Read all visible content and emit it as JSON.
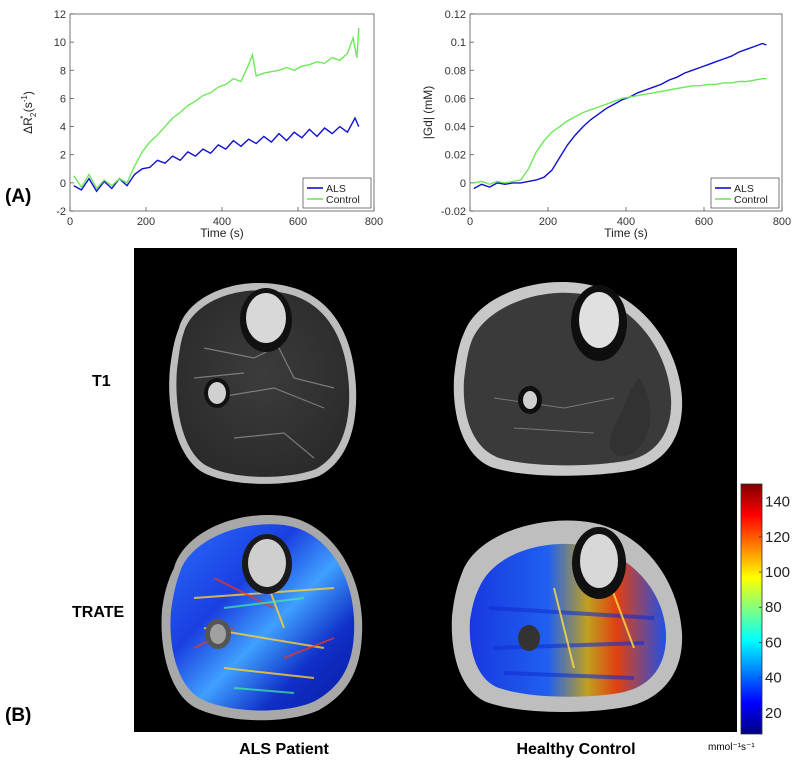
{
  "panel_labels": {
    "a": "(A)",
    "b": "(B)"
  },
  "row_labels": {
    "t1": "T1",
    "trate": "TRATE"
  },
  "column_labels": {
    "als": "ALS Patient",
    "control": "Healthy Control"
  },
  "colorbar": {
    "ticks": [
      "140",
      "120",
      "100",
      "80",
      "60",
      "40",
      "20"
    ],
    "unit": "mmol⁻¹s⁻¹",
    "range": [
      8,
      150
    ],
    "colormap": "jet"
  },
  "colors": {
    "als": "#1010d0",
    "control": "#6ee85a",
    "axis": "#555555"
  },
  "chart_data": [
    {
      "type": "line",
      "title": "",
      "xlabel": "Time (s)",
      "ylabel_html": "ΔR₂* (s⁻¹)",
      "ylabel_parts": {
        "main": "ΔR",
        "sub": "2",
        "sup": "*",
        "unit_open": " (s",
        "unit_sup": "-1",
        "unit_close": ")"
      },
      "xlim": [
        0,
        800
      ],
      "ylim": [
        -2,
        12
      ],
      "xticks": [
        "0",
        "200",
        "400",
        "600",
        "800"
      ],
      "yticks": [
        "-2",
        "0",
        "2",
        "4",
        "6",
        "8",
        "10",
        "12"
      ],
      "legend": [
        "ALS",
        "Control"
      ],
      "legend_position": "bottom-right",
      "series": [
        {
          "name": "ALS",
          "x": [
            10,
            30,
            50,
            70,
            90,
            110,
            130,
            150,
            170,
            190,
            210,
            230,
            250,
            270,
            290,
            310,
            330,
            350,
            370,
            390,
            410,
            430,
            450,
            470,
            490,
            510,
            530,
            550,
            570,
            590,
            610,
            630,
            650,
            670,
            690,
            710,
            730,
            750,
            760
          ],
          "values": [
            -0.2,
            -0.5,
            0.3,
            -0.6,
            0.1,
            -0.4,
            0.3,
            -0.2,
            0.6,
            1.0,
            1.1,
            1.6,
            1.4,
            1.9,
            1.6,
            2.2,
            1.9,
            2.4,
            2.1,
            2.7,
            2.4,
            3.0,
            2.6,
            3.1,
            2.8,
            3.3,
            2.9,
            3.5,
            3.0,
            3.6,
            3.2,
            3.8,
            3.3,
            3.9,
            3.5,
            4.0,
            3.6,
            4.6,
            4.0
          ]
        },
        {
          "name": "Control",
          "x": [
            10,
            30,
            50,
            70,
            90,
            110,
            130,
            150,
            170,
            190,
            210,
            230,
            250,
            270,
            290,
            310,
            330,
            350,
            370,
            390,
            410,
            430,
            450,
            470,
            480,
            490,
            510,
            530,
            550,
            570,
            590,
            610,
            630,
            650,
            670,
            690,
            710,
            730,
            745,
            755,
            760
          ],
          "values": [
            0.5,
            -0.3,
            0.6,
            -0.4,
            0.2,
            -0.2,
            0.3,
            0.0,
            1.2,
            2.2,
            2.9,
            3.4,
            4.0,
            4.6,
            5.0,
            5.5,
            5.8,
            6.2,
            6.4,
            6.8,
            7.0,
            7.4,
            7.2,
            8.4,
            9.1,
            7.6,
            7.8,
            7.9,
            8.0,
            8.2,
            8.0,
            8.3,
            8.4,
            8.6,
            8.5,
            8.9,
            8.7,
            9.2,
            10.3,
            8.9,
            11.0
          ]
        }
      ]
    },
    {
      "type": "line",
      "title": "",
      "xlabel": "Time (s)",
      "ylabel": "|Gd| (mM)",
      "xlim": [
        0,
        800
      ],
      "ylim": [
        -0.02,
        0.12
      ],
      "xticks": [
        "0",
        "200",
        "400",
        "600",
        "800"
      ],
      "yticks": [
        "-0.02",
        "0",
        "0.02",
        "0.04",
        "0.06",
        "0.08",
        "0.1",
        "0.12"
      ],
      "legend": [
        "ALS",
        "Control"
      ],
      "legend_position": "bottom-right",
      "series": [
        {
          "name": "ALS",
          "x": [
            10,
            30,
            50,
            70,
            90,
            110,
            130,
            150,
            170,
            190,
            210,
            230,
            250,
            270,
            290,
            310,
            330,
            350,
            370,
            390,
            410,
            430,
            450,
            470,
            490,
            510,
            530,
            550,
            570,
            590,
            610,
            630,
            650,
            670,
            690,
            710,
            730,
            750,
            760
          ],
          "values": [
            -0.004,
            -0.001,
            -0.003,
            0.0,
            -0.001,
            0.0,
            0.0,
            0.001,
            0.002,
            0.004,
            0.009,
            0.018,
            0.027,
            0.034,
            0.04,
            0.045,
            0.049,
            0.053,
            0.056,
            0.059,
            0.061,
            0.064,
            0.066,
            0.068,
            0.07,
            0.073,
            0.075,
            0.078,
            0.08,
            0.082,
            0.084,
            0.086,
            0.088,
            0.09,
            0.093,
            0.095,
            0.097,
            0.099,
            0.098
          ]
        },
        {
          "name": "Control",
          "x": [
            10,
            30,
            50,
            70,
            90,
            110,
            130,
            150,
            170,
            190,
            210,
            230,
            250,
            270,
            290,
            310,
            330,
            350,
            370,
            390,
            410,
            430,
            450,
            470,
            490,
            510,
            530,
            550,
            570,
            590,
            610,
            630,
            650,
            670,
            690,
            710,
            730,
            750,
            760
          ],
          "values": [
            0.0,
            0.001,
            -0.001,
            0.001,
            0.0,
            0.001,
            0.002,
            0.01,
            0.022,
            0.03,
            0.036,
            0.04,
            0.044,
            0.047,
            0.05,
            0.052,
            0.054,
            0.056,
            0.058,
            0.06,
            0.061,
            0.062,
            0.063,
            0.064,
            0.065,
            0.066,
            0.067,
            0.068,
            0.069,
            0.069,
            0.07,
            0.07,
            0.071,
            0.071,
            0.072,
            0.072,
            0.073,
            0.074,
            0.074
          ]
        }
      ]
    }
  ]
}
